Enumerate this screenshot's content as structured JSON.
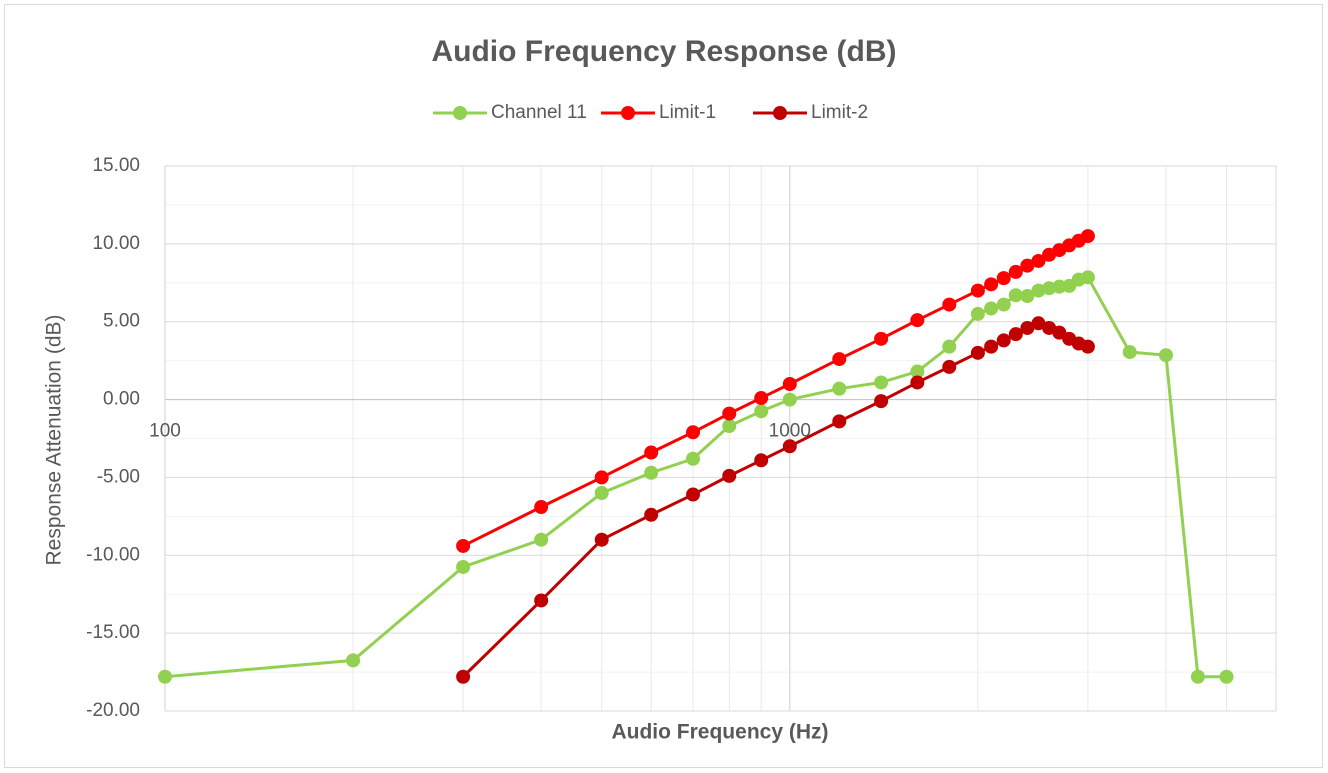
{
  "chart_data": {
    "type": "line",
    "title": "Audio Frequency Response (dB)",
    "x_label": "Audio Frequency (Hz)",
    "y_label": "Response Attenuation (dB)",
    "log_x": true,
    "xlim": [
      100,
      6000
    ],
    "xticks": [
      100,
      1000
    ],
    "xminorticks": [
      200,
      300,
      400,
      500,
      600,
      700,
      800,
      900,
      2000,
      3000,
      4000,
      5000
    ],
    "ylim": [
      -20,
      15
    ],
    "yticks": [
      {
        "value": -20,
        "label": "-20.00"
      },
      {
        "value": -15,
        "label": "-15.00"
      },
      {
        "value": -10,
        "label": "-10.00"
      },
      {
        "value": -5,
        "label": "-5.00"
      },
      {
        "value": 0,
        "label": "0.00"
      },
      {
        "value": 5,
        "label": "5.00"
      },
      {
        "value": 10,
        "label": "10.00"
      },
      {
        "value": 15,
        "label": "15.00"
      }
    ],
    "yminorticks": [
      -17.5,
      -12.5,
      -7.5,
      -2.5,
      2.5,
      7.5,
      12.5
    ],
    "grid": true,
    "legend": "top",
    "series": [
      {
        "name": "Channel 11",
        "color": "#92d050",
        "x": [
          100,
          200,
          300,
          400,
          500,
          600,
          700,
          800,
          900,
          1000,
          1200,
          1400,
          1600,
          1800,
          2000,
          2100,
          2200,
          2300,
          2400,
          2500,
          2600,
          2700,
          2800,
          2900,
          3000,
          3500,
          4000,
          4500,
          5000
        ],
        "values": [
          -17.8,
          -16.75,
          -10.75,
          -9.0,
          -6.0,
          -4.7,
          -3.8,
          -1.7,
          -0.75,
          0,
          0.7,
          1.1,
          1.8,
          3.4,
          5.5,
          5.85,
          6.1,
          6.7,
          6.65,
          7.0,
          7.15,
          7.25,
          7.3,
          7.7,
          7.85,
          3.05,
          2.85,
          -17.8,
          -17.8
        ]
      },
      {
        "name": "Limit-1",
        "color": "#ff0000",
        "x": [
          300,
          400,
          500,
          600,
          700,
          800,
          900,
          1000,
          1200,
          1400,
          1600,
          1800,
          2000,
          2100,
          2200,
          2300,
          2400,
          2500,
          2600,
          2700,
          2800,
          2900,
          3000
        ],
        "values": [
          -9.4,
          -6.9,
          -5.0,
          -3.4,
          -2.1,
          -0.9,
          0.1,
          1.0,
          2.6,
          3.9,
          5.1,
          6.1,
          7.0,
          7.4,
          7.8,
          8.2,
          8.6,
          8.9,
          9.3,
          9.6,
          9.9,
          10.2,
          10.5
        ]
      },
      {
        "name": "Limit-2",
        "color": "#c00000",
        "x": [
          300,
          400,
          500,
          600,
          700,
          800,
          900,
          1000,
          1200,
          1400,
          1600,
          1800,
          2000,
          2100,
          2200,
          2300,
          2400,
          2500,
          2600,
          2700,
          2800,
          2900,
          3000
        ],
        "values": [
          -17.8,
          -12.9,
          -9.0,
          -7.4,
          -6.1,
          -4.9,
          -3.9,
          -3.0,
          -1.4,
          -0.1,
          1.1,
          2.1,
          3.0,
          3.4,
          3.8,
          4.2,
          4.6,
          4.9,
          4.6,
          4.3,
          3.9,
          3.6,
          3.4
        ]
      }
    ]
  }
}
